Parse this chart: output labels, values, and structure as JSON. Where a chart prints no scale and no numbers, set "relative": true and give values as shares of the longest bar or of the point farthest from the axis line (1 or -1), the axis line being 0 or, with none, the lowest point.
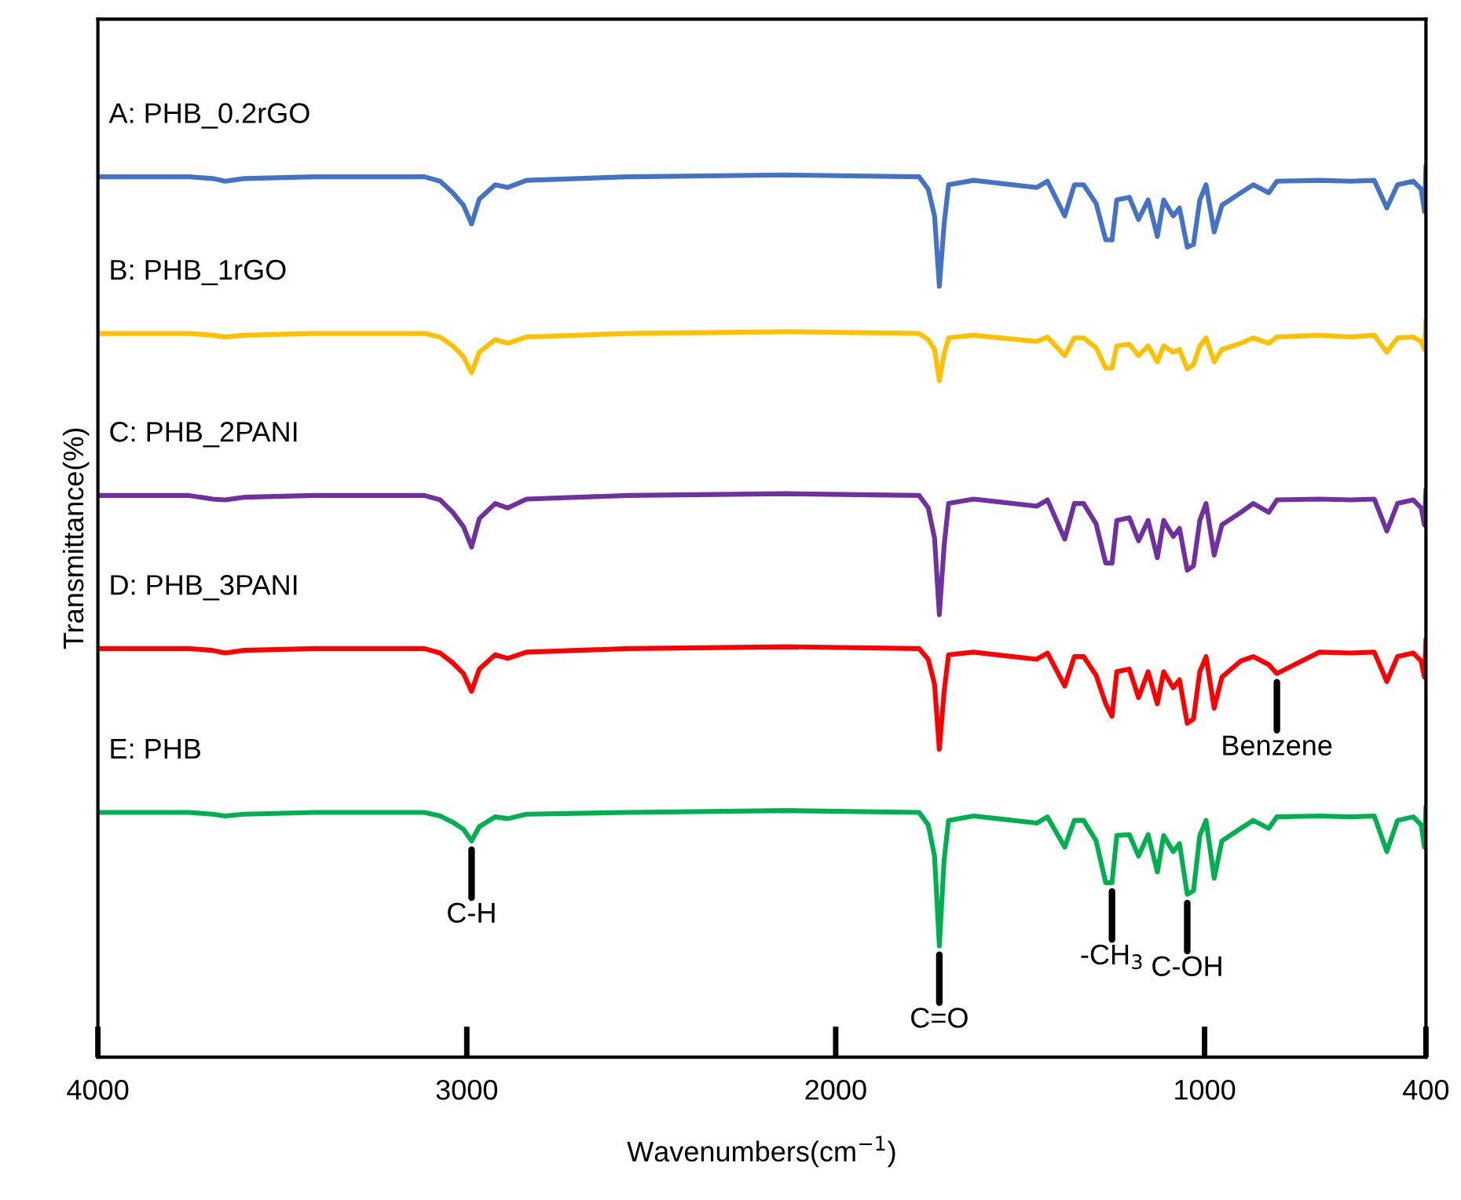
{
  "chart_data": {
    "type": "line",
    "relative": true,
    "xlabel": "Wavenumbers(cm$^{−1}$)",
    "ylabel": "Transmittance(%)",
    "xlim": [
      4000,
      400
    ],
    "xticks": [
      4000,
      3000,
      2000,
      1000,
      400
    ],
    "grid": false,
    "legend": false,
    "marker": "none",
    "line_style": "solid",
    "x": [
      4000,
      3753,
      3689,
      3655,
      3604,
      3413,
      3115,
      3072,
      3038,
      3009,
      2987,
      2966,
      2923,
      2889,
      2838,
      2562,
      2136,
      1774,
      1749,
      1732,
      1719,
      1706,
      1694,
      1626,
      1455,
      1426,
      1379,
      1353,
      1328,
      1294,
      1268,
      1251,
      1238,
      1204,
      1179,
      1153,
      1128,
      1111,
      1085,
      1068,
      1047,
      1030,
      1013,
      996,
      974,
      953,
      902,
      868,
      826,
      804,
      689,
      604,
      540,
      506,
      477,
      434,
      413,
      404,
      400
    ],
    "series": [
      {
        "name": "A: PHB_0.2rGO",
        "color": "#4472c4",
        "values": [
          0.989,
          0.989,
          0.987,
          0.984,
          0.987,
          0.989,
          0.989,
          0.984,
          0.971,
          0.957,
          0.936,
          0.964,
          0.98,
          0.977,
          0.985,
          0.989,
          0.991,
          0.989,
          0.975,
          0.945,
          0.866,
          0.936,
          0.98,
          0.985,
          0.977,
          0.984,
          0.945,
          0.98,
          0.98,
          0.959,
          0.918,
          0.918,
          0.963,
          0.966,
          0.941,
          0.963,
          0.922,
          0.963,
          0.945,
          0.954,
          0.91,
          0.913,
          0.963,
          0.98,
          0.927,
          0.957,
          0.971,
          0.98,
          0.971,
          0.984,
          0.985,
          0.984,
          0.985,
          0.954,
          0.98,
          0.984,
          0.975,
          0.95,
          1.0
        ]
      },
      {
        "name": "B: PHB_1rGO",
        "color": "#ffc000",
        "values": [
          0.813,
          0.813,
          0.811,
          0.809,
          0.811,
          0.813,
          0.813,
          0.809,
          0.799,
          0.787,
          0.769,
          0.792,
          0.806,
          0.802,
          0.809,
          0.813,
          0.815,
          0.813,
          0.806,
          0.795,
          0.76,
          0.79,
          0.808,
          0.811,
          0.804,
          0.809,
          0.788,
          0.808,
          0.808,
          0.797,
          0.774,
          0.774,
          0.799,
          0.801,
          0.788,
          0.799,
          0.781,
          0.799,
          0.792,
          0.795,
          0.773,
          0.778,
          0.799,
          0.808,
          0.781,
          0.795,
          0.802,
          0.808,
          0.802,
          0.809,
          0.811,
          0.809,
          0.811,
          0.792,
          0.808,
          0.809,
          0.804,
          0.795,
          0.827
        ]
      },
      {
        "name": "C: PHB_2PANI",
        "color": "#7030a0",
        "values": [
          0.631,
          0.631,
          0.627,
          0.626,
          0.629,
          0.631,
          0.631,
          0.626,
          0.612,
          0.596,
          0.573,
          0.605,
          0.622,
          0.617,
          0.627,
          0.631,
          0.633,
          0.631,
          0.617,
          0.583,
          0.497,
          0.575,
          0.622,
          0.627,
          0.619,
          0.626,
          0.582,
          0.622,
          0.622,
          0.599,
          0.555,
          0.555,
          0.603,
          0.606,
          0.58,
          0.603,
          0.561,
          0.603,
          0.585,
          0.594,
          0.547,
          0.552,
          0.603,
          0.622,
          0.564,
          0.598,
          0.612,
          0.622,
          0.612,
          0.626,
          0.627,
          0.626,
          0.627,
          0.591,
          0.622,
          0.626,
          0.617,
          0.598,
          0.636
        ]
      },
      {
        "name": "D: PHB_3PANI",
        "color": "#ff0000",
        "values": [
          0.459,
          0.459,
          0.457,
          0.454,
          0.457,
          0.459,
          0.459,
          0.454,
          0.443,
          0.431,
          0.411,
          0.436,
          0.452,
          0.448,
          0.455,
          0.459,
          0.461,
          0.459,
          0.447,
          0.419,
          0.346,
          0.411,
          0.452,
          0.455,
          0.447,
          0.454,
          0.417,
          0.45,
          0.45,
          0.429,
          0.397,
          0.383,
          0.433,
          0.436,
          0.404,
          0.433,
          0.397,
          0.433,
          0.415,
          0.424,
          0.375,
          0.38,
          0.433,
          0.45,
          0.392,
          0.427,
          0.445,
          0.45,
          0.441,
          0.431,
          0.455,
          0.454,
          0.455,
          0.422,
          0.45,
          0.454,
          0.445,
          0.427,
          0.468
        ]
      },
      {
        "name": "E: PHB",
        "color": "#00b050",
        "values": [
          0.275,
          0.275,
          0.273,
          0.271,
          0.273,
          0.275,
          0.275,
          0.271,
          0.264,
          0.256,
          0.243,
          0.259,
          0.27,
          0.268,
          0.273,
          0.275,
          0.277,
          0.275,
          0.261,
          0.226,
          0.125,
          0.222,
          0.266,
          0.271,
          0.263,
          0.27,
          0.236,
          0.266,
          0.266,
          0.243,
          0.196,
          0.196,
          0.249,
          0.25,
          0.226,
          0.25,
          0.208,
          0.249,
          0.231,
          0.24,
          0.183,
          0.187,
          0.249,
          0.266,
          0.201,
          0.243,
          0.257,
          0.266,
          0.257,
          0.27,
          0.271,
          0.27,
          0.271,
          0.231,
          0.266,
          0.27,
          0.261,
          0.236,
          0.28
        ]
      }
    ],
    "annotations": [
      {
        "text": "C-H",
        "x": 2987,
        "y": 0.243
      },
      {
        "text": "C=O",
        "x": 1719,
        "y": 0.125
      },
      {
        "text": "-CH$_{3}$",
        "x": 1251,
        "y": 0.196
      },
      {
        "text": "C-OH",
        "x": 1047,
        "y": 0.183
      },
      {
        "text": "Benzene",
        "x": 804,
        "y": 0.431
      }
    ]
  }
}
